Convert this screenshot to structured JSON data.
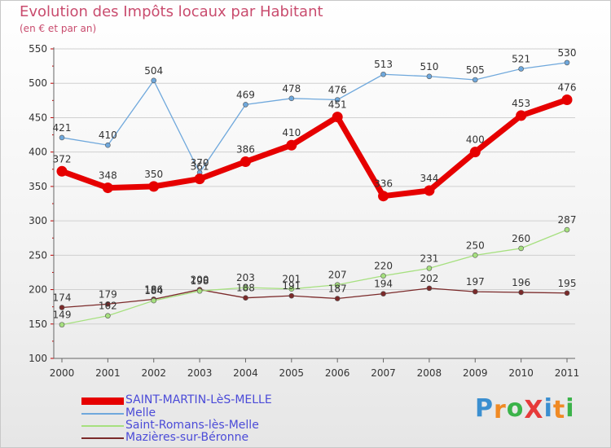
{
  "title": "Evolution des Impôts locaux par Habitant",
  "subtitle": "(en € et par an)",
  "logo": {
    "text": "ProXiti",
    "letters": [
      "P",
      "r",
      "o",
      "X",
      "i",
      "t",
      "i"
    ],
    "colors": [
      "#3b8fd0",
      "#f08a24",
      "#3bb34a",
      "#e63a3a",
      "#3b8fd0",
      "#f08a24",
      "#3bb34a"
    ]
  },
  "chart_data": {
    "type": "line",
    "title": "Evolution des Impôts locaux par Habitant",
    "subtitle": "(en € et par an)",
    "xlabel": "",
    "ylabel": "",
    "x": [
      "2000",
      "2001",
      "2002",
      "2003",
      "2004",
      "2005",
      "2006",
      "2007",
      "2008",
      "2009",
      "2010",
      "2011"
    ],
    "ylim": [
      100,
      550
    ],
    "yticks": [
      100,
      150,
      200,
      250,
      300,
      350,
      400,
      450,
      500,
      550
    ],
    "ytick_labels": [
      "100",
      "150",
      "200",
      "250",
      "300",
      "350",
      "400",
      "450",
      "500",
      "550"
    ],
    "legend_position": "bottom-left",
    "series": [
      {
        "name": "SAINT-MARTIN-LèS-MELLE",
        "color": "#e60000",
        "values": [
          372,
          348,
          350,
          361,
          386,
          410,
          451,
          336,
          344,
          400,
          453,
          476
        ],
        "labels": [
          "372",
          "348",
          "350",
          "361",
          "386",
          "410",
          "451",
          "336",
          "344",
          "400",
          "453",
          "476"
        ]
      },
      {
        "name": "Melle",
        "color": "#6fa8dc",
        "values": [
          421,
          410,
          504,
          370,
          469,
          478,
          476,
          513,
          510,
          505,
          521,
          530
        ],
        "labels": [
          "421",
          "410",
          "504",
          "370",
          "469",
          "478",
          "476",
          "513",
          "510",
          "505",
          "521",
          "530"
        ]
      },
      {
        "name": "Saint-Romans-lès-Melle",
        "color": "#a6e07f",
        "values": [
          149,
          162,
          184,
          198,
          203,
          201,
          207,
          220,
          231,
          250,
          260,
          287
        ],
        "labels": [
          "149",
          "162",
          "184",
          "198",
          "203",
          "201",
          "207",
          "220",
          "231",
          "250",
          "260",
          "287"
        ]
      },
      {
        "name": "Mazières-sur-Béronne",
        "color": "#7b2a2a",
        "values": [
          174,
          179,
          186,
          200,
          188,
          191,
          187,
          194,
          202,
          197,
          196,
          195
        ],
        "labels": [
          "174",
          "179",
          "186",
          "200",
          "188",
          "191",
          "187",
          "194",
          "202",
          "197",
          "196",
          "195"
        ]
      }
    ]
  }
}
